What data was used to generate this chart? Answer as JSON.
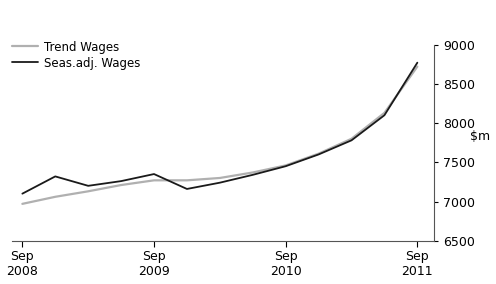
{
  "ylim": [
    6500,
    9000
  ],
  "yticks": [
    6500,
    7000,
    7500,
    8000,
    8500,
    9000
  ],
  "x_tick_labels": [
    "Sep\n2008",
    "Sep\n2009",
    "Sep\n2010",
    "Sep\n2011"
  ],
  "x_tick_positions": [
    0,
    4,
    8,
    12
  ],
  "seas_adj_wages": {
    "label": "Seas.adj. Wages",
    "color": "#1a1a1a",
    "linewidth": 1.3,
    "x": [
      0,
      1,
      2,
      3,
      4,
      5,
      6,
      7,
      8,
      9,
      10,
      11,
      12
    ],
    "y": [
      7100,
      7320,
      7200,
      7260,
      7350,
      7160,
      7240,
      7340,
      7450,
      7600,
      7780,
      8100,
      8770
    ]
  },
  "trend_wages": {
    "label": "Trend Wages",
    "color": "#b0b0b0",
    "linewidth": 1.6,
    "x": [
      0,
      1,
      2,
      3,
      4,
      5,
      6,
      7,
      8,
      9,
      10,
      11,
      12
    ],
    "y": [
      6970,
      7060,
      7130,
      7210,
      7270,
      7270,
      7300,
      7370,
      7460,
      7610,
      7800,
      8130,
      8720
    ]
  },
  "background_color": "#ffffff",
  "legend_loc": "upper left",
  "legend_fontsize": 8.5
}
